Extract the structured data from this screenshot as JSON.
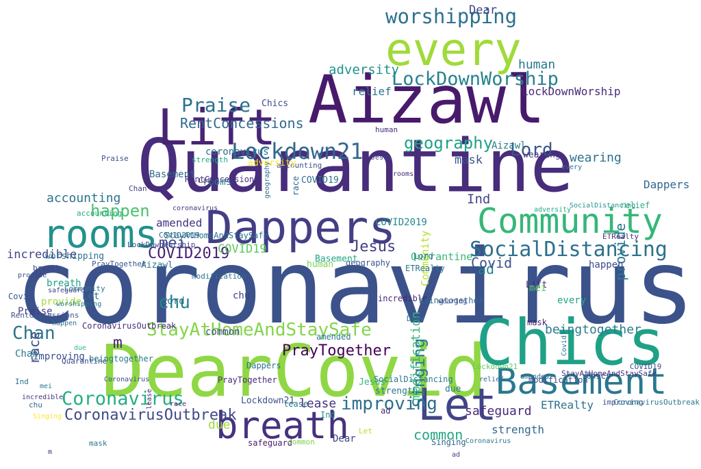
{
  "words": [
    {
      "text": "coronavirus",
      "color": "#3b528b"
    },
    {
      "text": "Quarantine",
      "color": "#472d7b"
    },
    {
      "text": "Aizawl",
      "color": "#481a6c"
    },
    {
      "text": "DearCovid",
      "color": "#8fd744"
    },
    {
      "text": "Chics",
      "color": "#1fa187"
    },
    {
      "text": "every",
      "color": "#a0da39"
    },
    {
      "text": "Dappers",
      "color": "#433e85"
    },
    {
      "text": "Lift",
      "color": "#482475"
    },
    {
      "text": "Community",
      "color": "#35b779"
    },
    {
      "text": "rooms",
      "color": "#21918c"
    },
    {
      "text": "Basement",
      "color": "#2a788e"
    },
    {
      "text": "breath",
      "color": "#46327e"
    },
    {
      "text": "Let",
      "color": "#414487"
    },
    {
      "text": "worshipping",
      "color": "#2c728e"
    },
    {
      "text": "Lockdown21",
      "color": "#31688e"
    },
    {
      "text": "LockDownWorship",
      "color": "#26828e"
    },
    {
      "text": "SocialDistancing",
      "color": "#2d708e"
    },
    {
      "text": "StayAtHomeAndStaySafe",
      "color": "#84d44b"
    },
    {
      "text": "CoronavirusOutbreak",
      "color": "#3e4989"
    },
    {
      "text": "Praise",
      "color": "#2c728e"
    },
    {
      "text": "RentConcessions",
      "color": "#31688e"
    },
    {
      "text": "geography",
      "color": "#1fa187"
    },
    {
      "text": "happen",
      "color": "#4ac16d"
    },
    {
      "text": "COVID2019",
      "color": "#482173"
    },
    {
      "text": "Coronavirus",
      "color": "#27ad81"
    },
    {
      "text": "PrayTogether",
      "color": "#440154"
    },
    {
      "text": "improving",
      "color": "#2e6e8e"
    },
    {
      "text": "Singing",
      "color": "#2a788e"
    },
    {
      "text": "Jesus",
      "color": "#433e85"
    },
    {
      "text": "Chan",
      "color": "#2c728e"
    },
    {
      "text": "chu",
      "color": "#25848e"
    },
    {
      "text": "mei",
      "color": "#3e4989"
    },
    {
      "text": "Lord",
      "color": "#39568c"
    },
    {
      "text": "human",
      "color": "#2a788e"
    },
    {
      "text": "adversity",
      "color": "#20928c"
    },
    {
      "text": "accounting",
      "color": "#2c728e"
    },
    {
      "text": "amended",
      "color": "#46327e"
    },
    {
      "text": "incredible",
      "color": "#414487"
    },
    {
      "text": "COVID19",
      "color": "#5ec962"
    },
    {
      "text": "relief",
      "color": "#2c728e"
    },
    {
      "text": "modification",
      "color": "#35b779"
    },
    {
      "text": "safeguard",
      "color": "#482878"
    },
    {
      "text": "strength",
      "color": "#31688e"
    },
    {
      "text": "ETRealty",
      "color": "#2c728e"
    },
    {
      "text": "beingtogether",
      "color": "#287c8e"
    },
    {
      "text": "lease",
      "color": "#46327e"
    },
    {
      "text": "common",
      "color": "#22a884"
    },
    {
      "text": "Ind",
      "color": "#404688"
    },
    {
      "text": "mask",
      "color": "#3b528b"
    },
    {
      "text": "provide",
      "color": "#2a788e"
    },
    {
      "text": "race",
      "color": "#3b528b"
    },
    {
      "text": "due",
      "color": "#a0da39"
    },
    {
      "text": "ad",
      "color": "#25848e"
    },
    {
      "text": "m",
      "color": "#482475"
    },
    {
      "text": "Covid",
      "color": "#3b528b"
    },
    {
      "text": "wearing",
      "color": "#2d708e"
    },
    {
      "text": "Dear",
      "color": "#414487"
    },
    {
      "text": "coronavirus",
      "color": "#2c728e"
    },
    {
      "text": "Quarantine",
      "color": "#35b779"
    },
    {
      "text": "Aizawl",
      "color": "#287c8e"
    },
    {
      "text": "Chics",
      "color": "#3e4989"
    },
    {
      "text": "Dappers",
      "color": "#31688e"
    },
    {
      "text": "COVID2019",
      "color": "#23888e"
    },
    {
      "text": "LockDownWorship",
      "color": "#482878"
    },
    {
      "text": "RentConcessions",
      "color": "#46327e"
    },
    {
      "text": "Basement",
      "color": "#31688e"
    },
    {
      "text": "accounting",
      "color": "#3b528b"
    },
    {
      "text": "breath",
      "color": "#1fa187"
    },
    {
      "text": "rooms",
      "color": "#2a788e"
    },
    {
      "text": "SocialDistancing",
      "color": "#2a788e"
    },
    {
      "text": "happen",
      "color": "#3e4989"
    },
    {
      "text": "human",
      "color": "#7ad151"
    },
    {
      "text": "Lockdown21",
      "color": "#3b528b"
    },
    {
      "text": "geography",
      "color": "#39568c"
    },
    {
      "text": "Praise",
      "color": "#433e85"
    },
    {
      "text": "incredible",
      "color": "#482475"
    },
    {
      "text": "worshipping",
      "color": "#2c728e"
    },
    {
      "text": "Chan",
      "color": "#2a788e"
    },
    {
      "text": "Lift",
      "color": "#481f70"
    },
    {
      "text": "Community",
      "color": "#b5de2b"
    },
    {
      "text": "adversity",
      "color": "#fde725"
    },
    {
      "text": "modification",
      "color": "#3e4989"
    },
    {
      "text": "ETRealty",
      "color": "#2c728e"
    },
    {
      "text": "PrayTogether",
      "color": "#482878"
    },
    {
      "text": "COVID19",
      "color": "#2d708e"
    },
    {
      "text": "strength",
      "color": "#2a788e"
    },
    {
      "text": "relief",
      "color": "#29af7f"
    },
    {
      "text": "mei",
      "color": "#5ec962"
    },
    {
      "text": "Jesus",
      "color": "#35b779"
    },
    {
      "text": "beingtogether",
      "color": "#31688e"
    },
    {
      "text": "provide",
      "color": "#a0da39"
    },
    {
      "text": "StayAtHomeAndStaySafe",
      "color": "#2c728e"
    },
    {
      "text": "CoronavirusOutbreak",
      "color": "#472d7b"
    },
    {
      "text": "Covid",
      "color": "#3b528b"
    },
    {
      "text": "safeguard",
      "color": "#481a6c"
    },
    {
      "text": "wearing",
      "color": "#46327e"
    },
    {
      "text": "every",
      "color": "#22a884"
    },
    {
      "text": "Let",
      "color": "#2c728e"
    },
    {
      "text": "Dear",
      "color": "#414487"
    },
    {
      "text": "lease",
      "color": "#2a788e"
    },
    {
      "text": "mask",
      "color": "#482475"
    },
    {
      "text": "common",
      "color": "#3e4989"
    },
    {
      "text": "chu",
      "color": "#433e85"
    },
    {
      "text": "Singing",
      "color": "#31688e"
    },
    {
      "text": "Lord",
      "color": "#2c728e"
    },
    {
      "text": "amended",
      "color": "#2a788e"
    },
    {
      "text": "improving",
      "color": "#3b528b"
    },
    {
      "text": "race",
      "color": "#31688e"
    },
    {
      "text": "Ind",
      "color": "#20928c"
    },
    {
      "text": "ad",
      "color": "#482878"
    },
    {
      "text": "due",
      "color": "#2a788e"
    },
    {
      "text": "Coronavirus",
      "color": "#3e4989"
    },
    {
      "text": "Quarantine",
      "color": "#404688"
    },
    {
      "text": "Aizawl",
      "color": "#2c728e"
    },
    {
      "text": "coronavirus",
      "color": "#46327e"
    },
    {
      "text": "Basement",
      "color": "#22a884"
    },
    {
      "text": "Chics",
      "color": "#3b528b"
    },
    {
      "text": "Dappers",
      "color": "#2d708e"
    },
    {
      "text": "Let",
      "color": "#b5de2b"
    },
    {
      "text": "Lift",
      "color": "#482475"
    },
    {
      "text": "Covid",
      "color": "#2c728e"
    },
    {
      "text": "LockDownWorship",
      "color": "#3e4989"
    },
    {
      "text": "SocialDistancing",
      "color": "#20928c"
    },
    {
      "text": "RentConcessions",
      "color": "#3b528b"
    },
    {
      "text": "COVID2019",
      "color": "#31688e"
    },
    {
      "text": "worshipping",
      "color": "#2a788e"
    },
    {
      "text": "accounting",
      "color": "#22a884"
    },
    {
      "text": "breath",
      "color": "#414487"
    },
    {
      "text": "happen",
      "color": "#2c728e"
    },
    {
      "text": "StayAtHomeAndStaySafe",
      "color": "#46327e"
    },
    {
      "text": "PrayTogether",
      "color": "#39568c"
    },
    {
      "text": "Community",
      "color": "#2a788e"
    },
    {
      "text": "Lockdown21",
      "color": "#5ec962"
    },
    {
      "text": "rooms",
      "color": "#482878"
    },
    {
      "text": "geography",
      "color": "#2c728e"
    },
    {
      "text": "Jesus",
      "color": "#3e4989"
    },
    {
      "text": "mei",
      "color": "#2a788e"
    },
    {
      "text": "chu",
      "color": "#31688e"
    },
    {
      "text": "human",
      "color": "#472d7b"
    },
    {
      "text": "modification",
      "color": "#2d708e"
    },
    {
      "text": "Praise",
      "color": "#3b528b"
    },
    {
      "text": "Chan",
      "color": "#414487"
    },
    {
      "text": "Lord",
      "color": "#2c728e"
    },
    {
      "text": "incredible",
      "color": "#46327e"
    },
    {
      "text": "strength",
      "color": "#22a884"
    },
    {
      "text": "relief",
      "color": "#31688e"
    },
    {
      "text": "mask",
      "color": "#2a788e"
    },
    {
      "text": "wearing",
      "color": "#3e4989"
    },
    {
      "text": "lease",
      "color": "#482475"
    },
    {
      "text": "every",
      "color": "#2c728e"
    },
    {
      "text": "Singing",
      "color": "#fde725"
    },
    {
      "text": "improving",
      "color": "#3b528b"
    },
    {
      "text": "beingtogether",
      "color": "#2a788e"
    },
    {
      "text": "safeguard",
      "color": "#414487"
    },
    {
      "text": "common",
      "color": "#7ad151"
    },
    {
      "text": "ETRealty",
      "color": "#46327e"
    },
    {
      "text": "Dear",
      "color": "#2c728e"
    },
    {
      "text": "amended",
      "color": "#31688e"
    },
    {
      "text": "adversity",
      "color": "#22a884"
    },
    {
      "text": "provide",
      "color": "#3e4989"
    },
    {
      "text": "race",
      "color": "#482878"
    },
    {
      "text": "CoronavirusOutbreak",
      "color": "#2a788e"
    },
    {
      "text": "COVID19",
      "color": "#3b528b"
    },
    {
      "text": "Ind",
      "color": "#2c728e"
    },
    {
      "text": "ad",
      "color": "#414487"
    },
    {
      "text": "due",
      "color": "#35b779"
    },
    {
      "text": "m",
      "color": "#46327e"
    },
    {
      "text": "Coronavirus",
      "color": "#2a788e"
    }
  ]
}
